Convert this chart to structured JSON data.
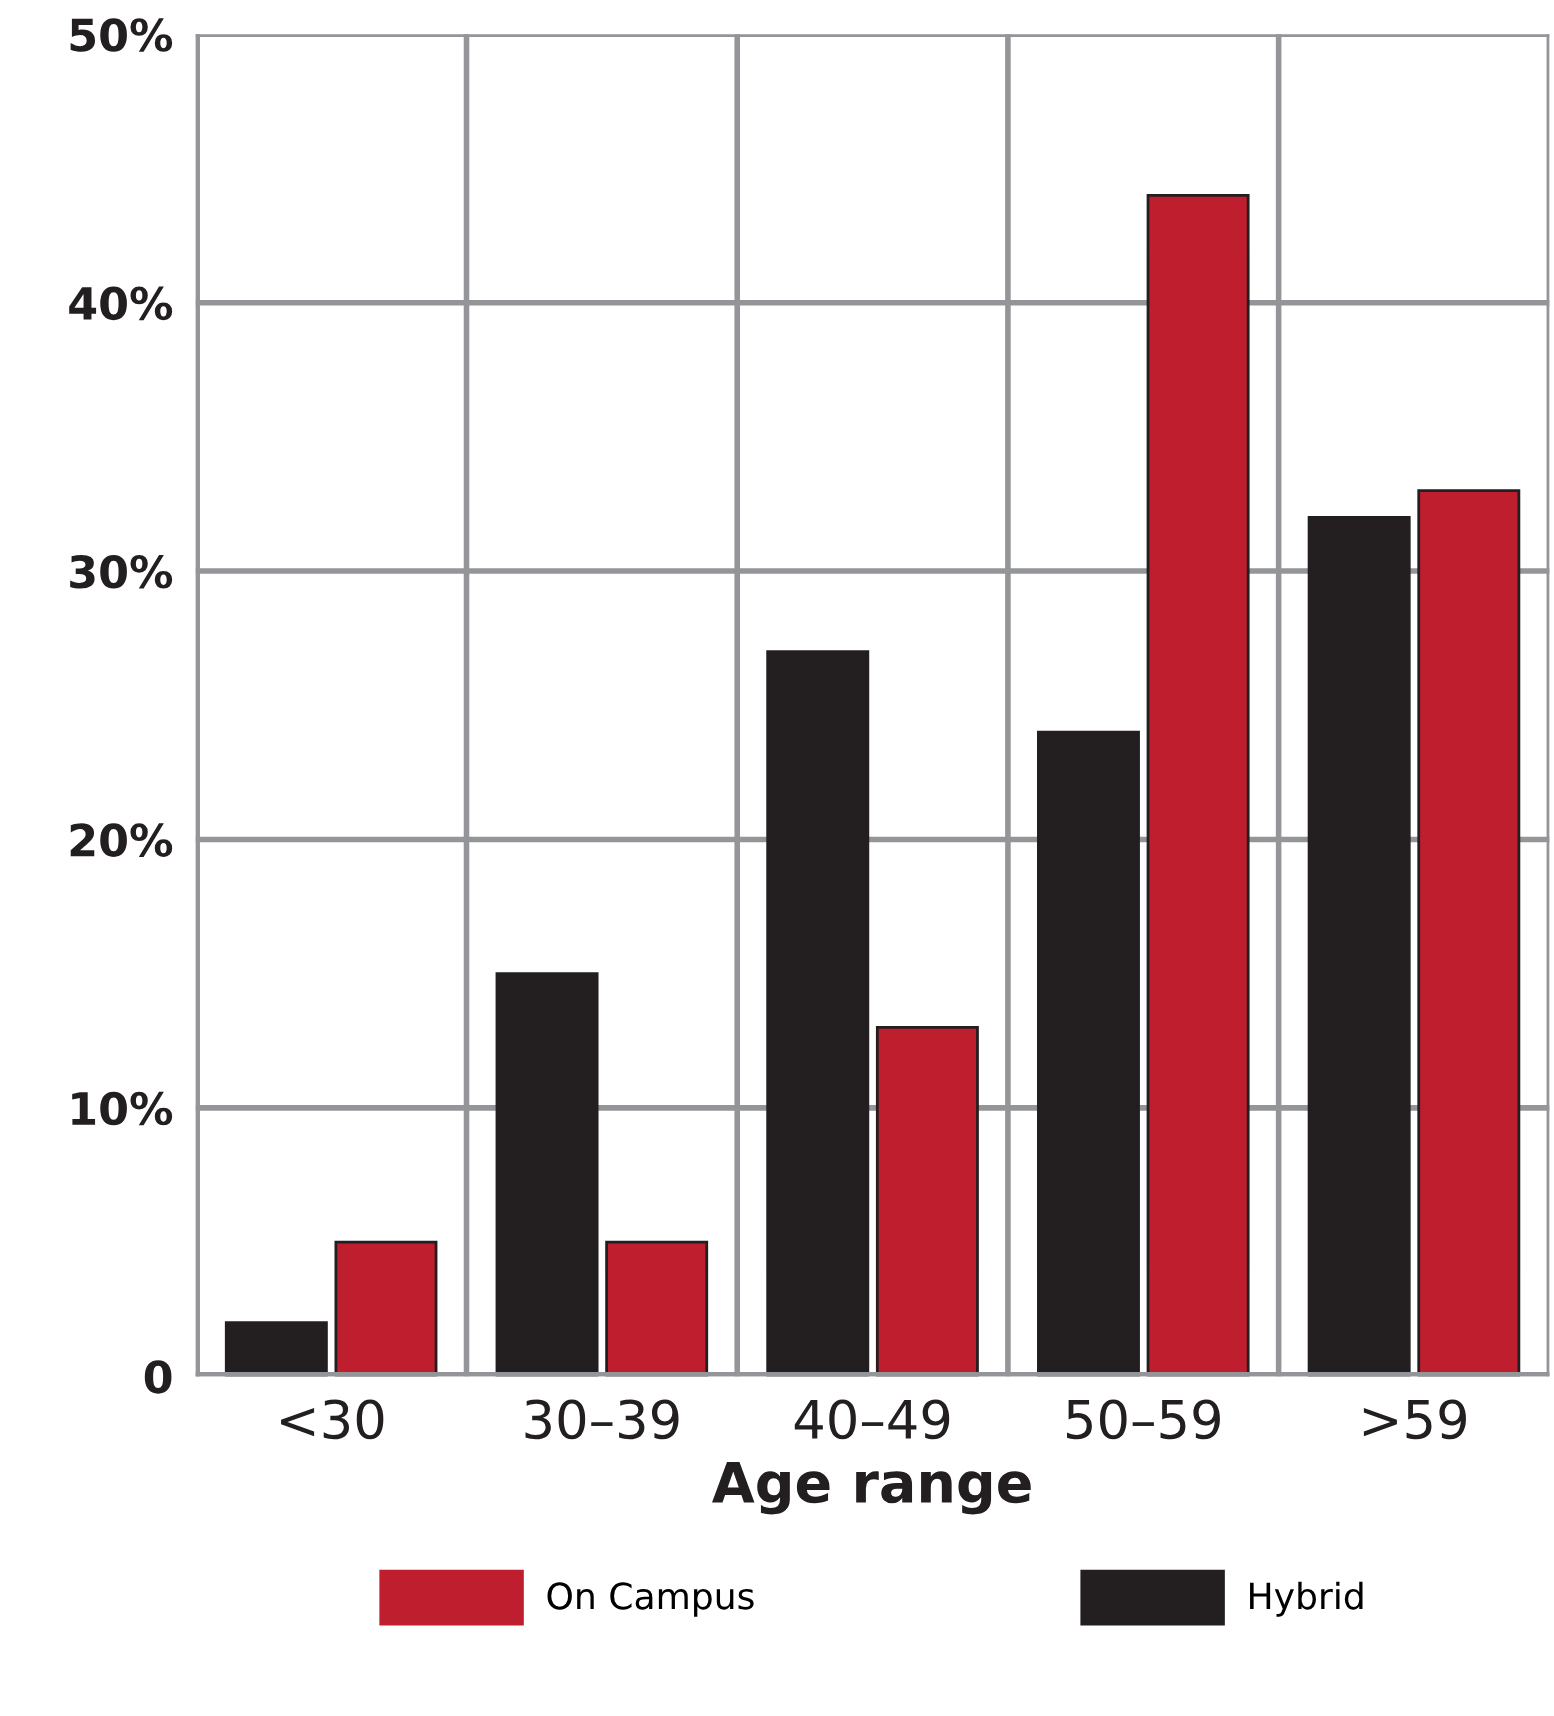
{
  "chart_data": {
    "type": "bar",
    "xlabel": "Age range",
    "categories": [
      "<30",
      "30–39",
      "40–49",
      "50–59",
      ">59"
    ],
    "series": [
      {
        "name": "Hybrid",
        "color": "#231f20",
        "values": [
          2,
          15,
          27,
          24,
          32
        ]
      },
      {
        "name": "On Campus",
        "color": "#be1e2d",
        "values": [
          5,
          5,
          13,
          44,
          33
        ]
      }
    ],
    "ylim": [
      0,
      50
    ],
    "yticks": [
      0,
      {
        "value": 10,
        "label": "10%"
      },
      {
        "value": 20,
        "label": "20%"
      },
      {
        "value": 30,
        "label": "30%"
      },
      {
        "value": 40,
        "label": "40%"
      },
      {
        "value": 50,
        "label": "50%"
      }
    ],
    "grid": true,
    "legend": "bottom"
  }
}
